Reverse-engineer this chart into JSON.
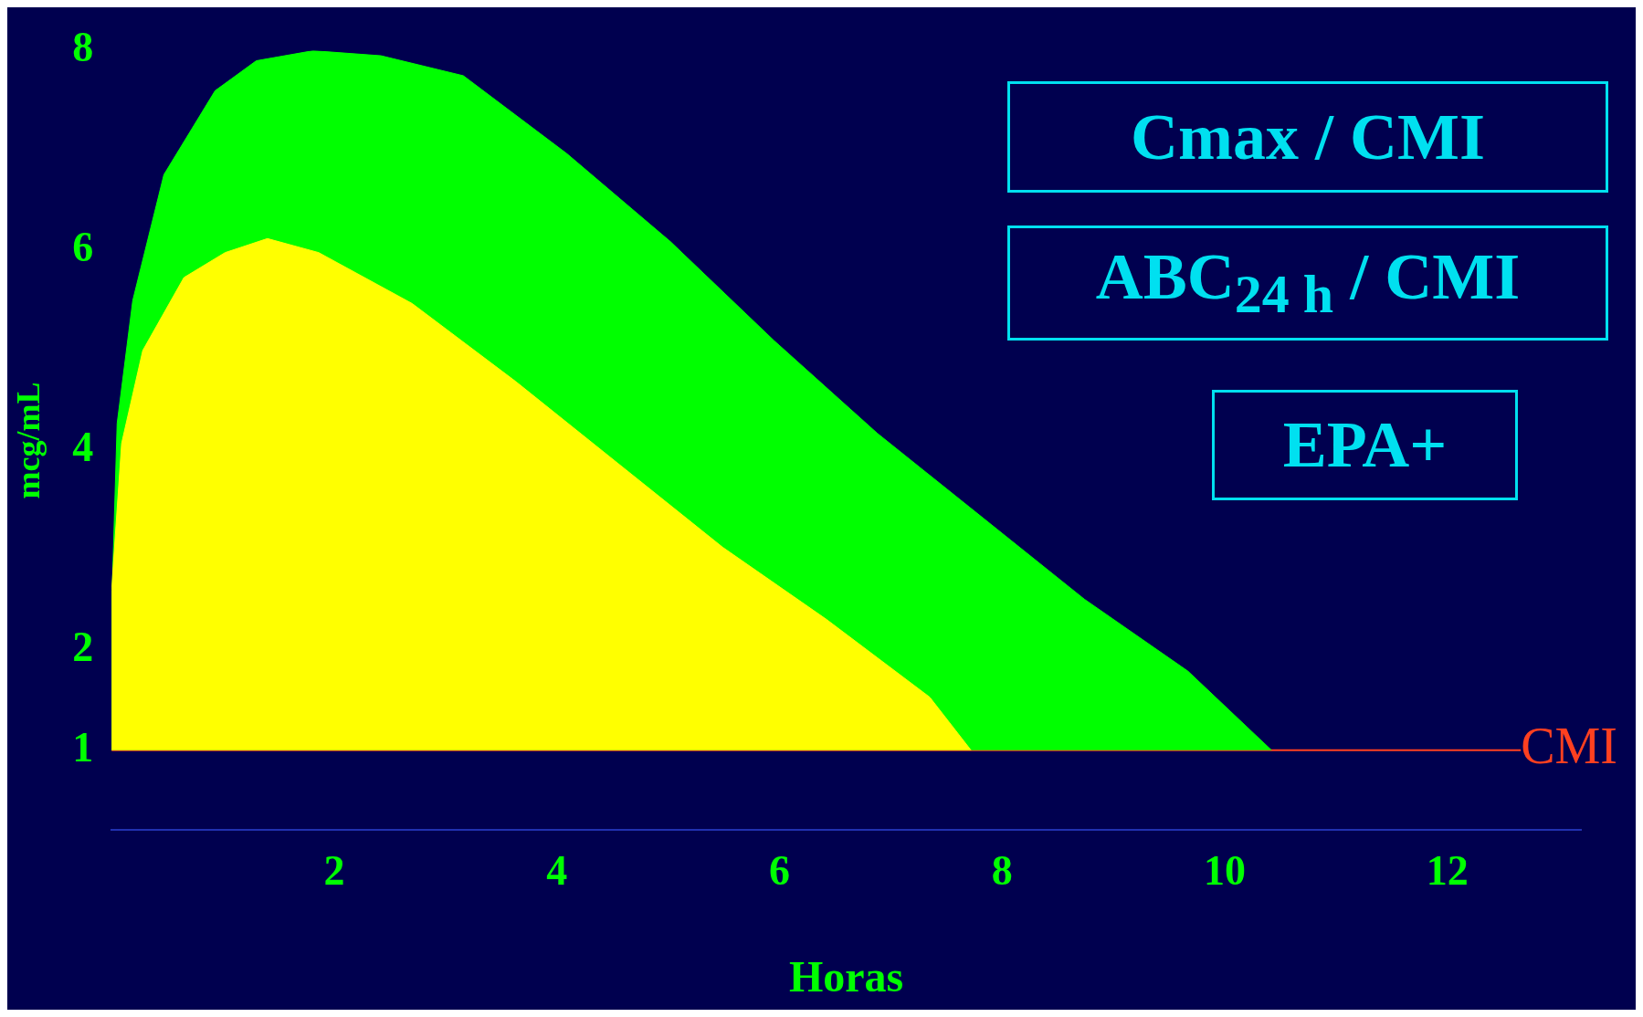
{
  "chart_data": {
    "type": "area",
    "xlabel": "Horas",
    "ylabel": "mcg/mL",
    "xlim": [
      0,
      13.2
    ],
    "ylim": [
      0.2,
      8
    ],
    "xticks": [
      2,
      4,
      6,
      8,
      10,
      12
    ],
    "yticks": [
      1,
      2,
      4,
      6,
      8
    ],
    "grid": false,
    "legend": false,
    "series": [
      {
        "color": "#ffff00",
        "x": [
          0,
          0,
          0.09,
          0.28,
          0.65,
          1.02,
          1.4,
          1.86,
          2.7,
          3.63,
          4.56,
          5.49,
          6.42,
          7.35,
          7.72
        ],
        "values": [
          1,
          2.6,
          4.07,
          5,
          5.73,
          5.98,
          6.12,
          5.98,
          5.47,
          4.69,
          3.86,
          3.03,
          2.31,
          1.53,
          1
        ]
      },
      {
        "color": "#00ff00",
        "x": [
          0,
          0,
          0.05,
          0.19,
          0.47,
          0.93,
          1.3,
          1.81,
          2.42,
          3.16,
          4.09,
          5.02,
          5.95,
          6.88,
          7.81,
          8.74,
          9.67,
          10.42
        ],
        "values": [
          1,
          2.4,
          4.27,
          5.5,
          6.76,
          7.6,
          7.9,
          8,
          7.95,
          7.75,
          6.97,
          6.09,
          5.1,
          4.17,
          3.34,
          2.51,
          1.79,
          1
        ]
      }
    ],
    "ref_lines": [
      {
        "axis": "y",
        "value": 1,
        "label": "CMI",
        "color": "#ff4020"
      }
    ],
    "annotations": [
      "Cmax / CMI",
      "ABC$_{24 h}$ / CMI",
      "EPA+"
    ]
  }
}
